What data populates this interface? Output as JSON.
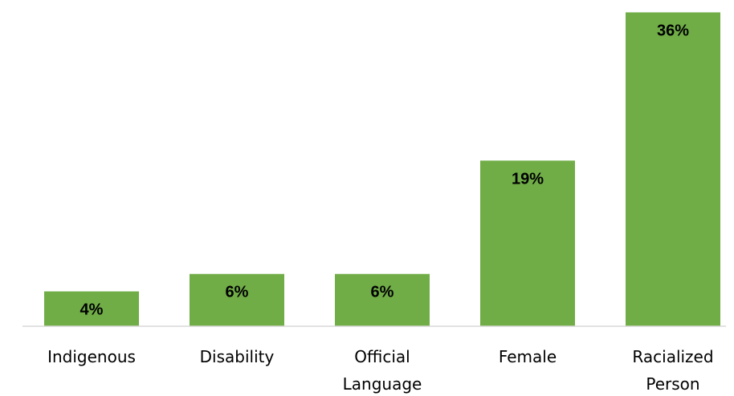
{
  "chart_data": {
    "type": "bar",
    "categories": [
      [
        "Indigenous"
      ],
      [
        "Disability"
      ],
      [
        "Official",
        "Language"
      ],
      [
        "Female"
      ],
      [
        "Racialized",
        "Person"
      ]
    ],
    "values": [
      4,
      6,
      6,
      19,
      36
    ],
    "value_labels": [
      "4%",
      "6%",
      "6%",
      "19%",
      "36%"
    ],
    "ylim": [
      0,
      36.5
    ],
    "grid": false,
    "legend": "none",
    "colors": {
      "bar": "#70AD47",
      "axis": "#D9D9D9",
      "text": "#000000"
    }
  }
}
